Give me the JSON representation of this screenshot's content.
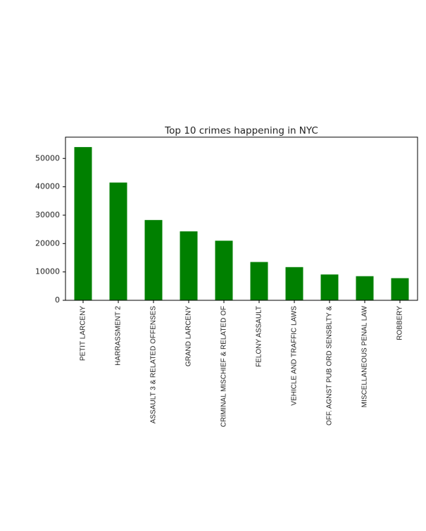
{
  "chart_data": {
    "type": "bar",
    "title": "Top 10 crimes happening in NYC",
    "xlabel": "",
    "ylabel": "",
    "categories": [
      "PETIT LARCENY",
      "HARRASSMENT 2",
      "ASSAULT 3 & RELATED OFFENSES",
      "GRAND LARCENY",
      "CRIMINAL MISCHIEF & RELATED OF",
      "FELONY ASSAULT",
      "VEHICLE AND TRAFFIC LAWS",
      "OFF. AGNST PUB ORD SENSBLTY &",
      "MISCELLANEOUS PENAL LAW",
      "ROBBERY"
    ],
    "values": [
      54000,
      41500,
      28300,
      24300,
      21000,
      13500,
      11700,
      9100,
      8500,
      7800
    ],
    "ylim": [
      0,
      57500
    ],
    "yticks": [
      0,
      10000,
      20000,
      30000,
      40000,
      50000
    ],
    "bar_color": "#008000",
    "grid": false
  }
}
